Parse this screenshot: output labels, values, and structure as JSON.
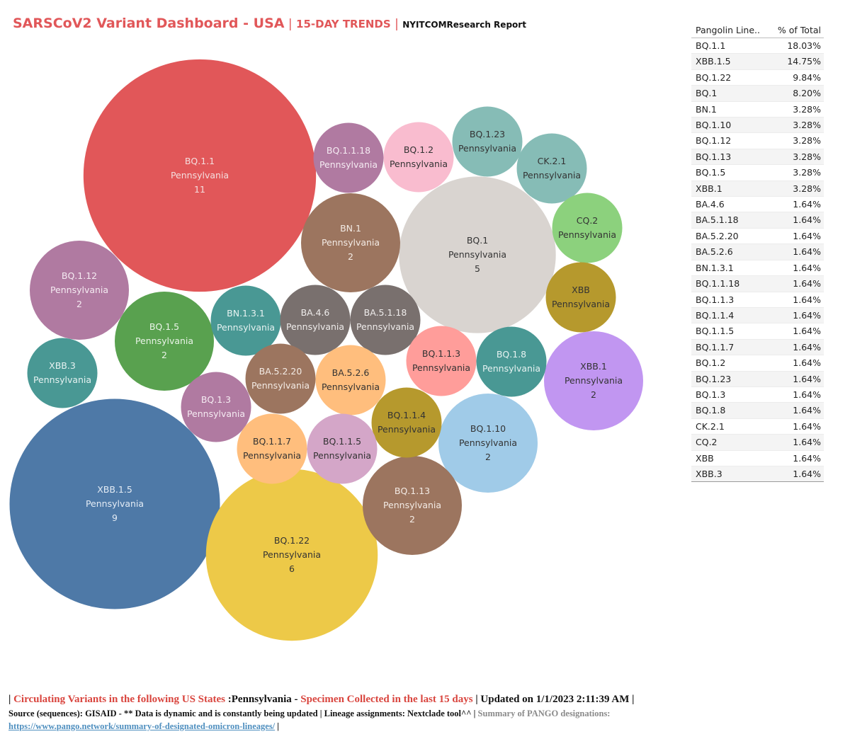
{
  "title": {
    "main": "SARSCoV2 Variant Dashboard - USA",
    "sep1": " | ",
    "trend": "15-DAY TRENDS",
    "sep2": " | ",
    "report": "NYITCOMResearch Report"
  },
  "table": {
    "headers": [
      "Pangolin Line..",
      "% of Total"
    ],
    "rows": [
      [
        "BQ.1.1",
        "18.03%"
      ],
      [
        "XBB.1.5",
        "14.75%"
      ],
      [
        "BQ.1.22",
        "9.84%"
      ],
      [
        "BQ.1",
        "8.20%"
      ],
      [
        "BN.1",
        "3.28%"
      ],
      [
        "BQ.1.10",
        "3.28%"
      ],
      [
        "BQ.1.12",
        "3.28%"
      ],
      [
        "BQ.1.13",
        "3.28%"
      ],
      [
        "BQ.1.5",
        "3.28%"
      ],
      [
        "XBB.1",
        "3.28%"
      ],
      [
        "BA.4.6",
        "1.64%"
      ],
      [
        "BA.5.1.18",
        "1.64%"
      ],
      [
        "BA.5.2.20",
        "1.64%"
      ],
      [
        "BA.5.2.6",
        "1.64%"
      ],
      [
        "BN.1.3.1",
        "1.64%"
      ],
      [
        "BQ.1.1.18",
        "1.64%"
      ],
      [
        "BQ.1.1.3",
        "1.64%"
      ],
      [
        "BQ.1.1.4",
        "1.64%"
      ],
      [
        "BQ.1.1.5",
        "1.64%"
      ],
      [
        "BQ.1.1.7",
        "1.64%"
      ],
      [
        "BQ.1.2",
        "1.64%"
      ],
      [
        "BQ.1.23",
        "1.64%"
      ],
      [
        "BQ.1.3",
        "1.64%"
      ],
      [
        "BQ.1.8",
        "1.64%"
      ],
      [
        "CK.2.1",
        "1.64%"
      ],
      [
        "CQ.2",
        "1.64%"
      ],
      [
        "XBB",
        "1.64%"
      ],
      [
        "XBB.3",
        "1.64%"
      ]
    ]
  },
  "chart_data": {
    "type": "bubble",
    "title": "SARSCoV2 Variant Dashboard - USA | 15-DAY TRENDS",
    "state": "Pennsylvania",
    "bubbles": [
      {
        "lineage": "BQ.1.1",
        "state": "Pennsylvania",
        "count": 11,
        "color": "#e15759",
        "text_color": "#f4dede"
      },
      {
        "lineage": "XBB.1.5",
        "state": "Pennsylvania",
        "count": 9,
        "color": "#4e79a7",
        "text_color": "#e4ecf5"
      },
      {
        "lineage": "BQ.1.22",
        "state": "Pennsylvania",
        "count": 6,
        "color": "#edc948",
        "text_color": "#333333"
      },
      {
        "lineage": "BQ.1",
        "state": "Pennsylvania",
        "count": 5,
        "color": "#d9d4d0",
        "text_color": "#333333"
      },
      {
        "lineage": "BN.1",
        "state": "Pennsylvania",
        "count": 2,
        "color": "#9c755f",
        "text_color": "#f3ebe5"
      },
      {
        "lineage": "BQ.1.12",
        "state": "Pennsylvania",
        "count": 2,
        "color": "#b07aa1",
        "text_color": "#f5ebf2"
      },
      {
        "lineage": "BQ.1.5",
        "state": "Pennsylvania",
        "count": 2,
        "color": "#59a14f",
        "text_color": "#eaf4e8"
      },
      {
        "lineage": "BQ.1.10",
        "state": "Pennsylvania",
        "count": 2,
        "color": "#a0cbe8",
        "text_color": "#333333"
      },
      {
        "lineage": "BQ.1.13",
        "state": "Pennsylvania",
        "count": 2,
        "color": "#9c755f",
        "text_color": "#f3ebe5"
      },
      {
        "lineage": "XBB.1",
        "state": "Pennsylvania",
        "count": 2,
        "color": "#c196f1",
        "text_color": "#333333"
      },
      {
        "lineage": "BQ.1.1.18",
        "state": "Pennsylvania",
        "count": 1,
        "color": "#b07aa1",
        "text_color": "#f5ebf2"
      },
      {
        "lineage": "BQ.1.2",
        "state": "Pennsylvania",
        "count": 1,
        "color": "#f9bccf",
        "text_color": "#333333"
      },
      {
        "lineage": "BQ.1.23",
        "state": "Pennsylvania",
        "count": 1,
        "color": "#86bcb6",
        "text_color": "#333333"
      },
      {
        "lineage": "CK.2.1",
        "state": "Pennsylvania",
        "count": 1,
        "color": "#86bcb6",
        "text_color": "#333333"
      },
      {
        "lineage": "CQ.2",
        "state": "Pennsylvania",
        "count": 1,
        "color": "#8cd17d",
        "text_color": "#333333"
      },
      {
        "lineage": "XBB",
        "state": "Pennsylvania",
        "count": 1,
        "color": "#b6992d",
        "text_color": "#333333"
      },
      {
        "lineage": "BN.1.3.1",
        "state": "Pennsylvania",
        "count": 1,
        "color": "#499894",
        "text_color": "#e6f2f1"
      },
      {
        "lineage": "BA.4.6",
        "state": "Pennsylvania",
        "count": 1,
        "color": "#79706e",
        "text_color": "#efeceb"
      },
      {
        "lineage": "BA.5.1.18",
        "state": "Pennsylvania",
        "count": 1,
        "color": "#79706e",
        "text_color": "#efeceb"
      },
      {
        "lineage": "XBB.3",
        "state": "Pennsylvania",
        "count": 1,
        "color": "#499894",
        "text_color": "#e6f2f1"
      },
      {
        "lineage": "BA.5.2.20",
        "state": "Pennsylvania",
        "count": 1,
        "color": "#9c755f",
        "text_color": "#f3ebe5"
      },
      {
        "lineage": "BA.5.2.6",
        "state": "Pennsylvania",
        "count": 1,
        "color": "#ffbe7d",
        "text_color": "#333333"
      },
      {
        "lineage": "BQ.1.1.3",
        "state": "Pennsylvania",
        "count": 1,
        "color": "#ff9d9a",
        "text_color": "#333333"
      },
      {
        "lineage": "BQ.1.8",
        "state": "Pennsylvania",
        "count": 1,
        "color": "#499894",
        "text_color": "#e6f2f1"
      },
      {
        "lineage": "BQ.1.3",
        "state": "Pennsylvania",
        "count": 1,
        "color": "#b07aa1",
        "text_color": "#f5ebf2"
      },
      {
        "lineage": "BQ.1.1.4",
        "state": "Pennsylvania",
        "count": 1,
        "color": "#b6992d",
        "text_color": "#333333"
      },
      {
        "lineage": "BQ.1.1.7",
        "state": "Pennsylvania",
        "count": 1,
        "color": "#ffbe7d",
        "text_color": "#333333"
      },
      {
        "lineage": "BQ.1.1.5",
        "state": "Pennsylvania",
        "count": 1,
        "color": "#d4a6c8",
        "text_color": "#333333"
      }
    ]
  },
  "footer": {
    "line1_pipe": "| ",
    "line1_a": "Circulating Variants in the following US States ",
    "line1_b": ":Pennsylvania - ",
    "line1_c": "Specimen Collected in the last 15 days",
    "line1_d": " | Updated on 1/1/2023 2:11:39 AM |",
    "line2_a": "Source (sequences): GISAID - ** Data is dynamic and is constantly being updated | Lineage assignments: Nextclade tool^^ | ",
    "line2_b": "Summary of PANGO designations:",
    "link": "https://www.pango.network/summary-of-designated-omicron-lineages/",
    "line3_end": " |"
  }
}
